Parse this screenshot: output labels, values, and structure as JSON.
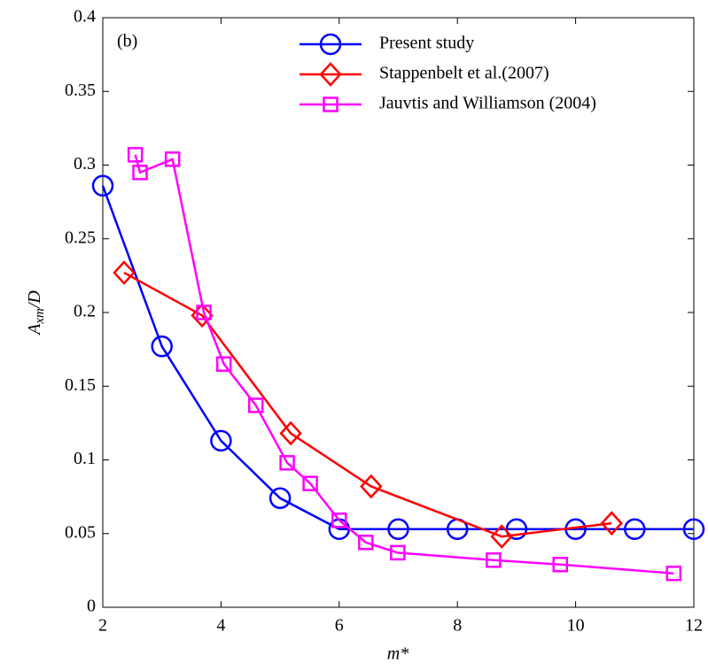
{
  "chart_data": {
    "type": "line",
    "annotation": "(b)",
    "xlabel": "m*",
    "ylabel": [
      "A",
      "xm",
      "/D"
    ],
    "xlim": [
      2,
      12
    ],
    "xticks": [
      2,
      4,
      6,
      8,
      10,
      12
    ],
    "ylim": [
      0,
      0.4
    ],
    "yticks": [
      0,
      0.05,
      0.1,
      0.15,
      0.2,
      0.25,
      0.3,
      0.35,
      0.4
    ],
    "grid": false,
    "legend": "top-right",
    "series": [
      {
        "name": "Present study",
        "color": "#0000ff",
        "marker": "circle",
        "x": [
          2,
          3,
          4,
          5,
          6,
          7,
          8,
          9,
          10,
          11,
          12
        ],
        "values": [
          0.286,
          0.177,
          0.113,
          0.074,
          0.053,
          0.053,
          0.053,
          0.053,
          0.053,
          0.053,
          0.053
        ]
      },
      {
        "name": "Stappenbelt et al.(2007)",
        "color": "#ff0000",
        "marker": "diamond",
        "x": [
          2.36,
          3.68,
          5.18,
          6.54,
          8.75,
          10.61
        ],
        "values": [
          0.227,
          0.198,
          0.118,
          0.082,
          0.048,
          0.057
        ]
      },
      {
        "name": "Jauvtis and Williamson (2004)",
        "color": "#ff00ff",
        "marker": "square",
        "x": [
          2.55,
          2.63,
          3.18,
          3.71,
          4.05,
          4.59,
          5.12,
          5.51,
          6.0,
          6.45,
          6.99,
          8.61,
          9.74,
          11.66
        ],
        "values": [
          0.307,
          0.295,
          0.304,
          0.2,
          0.165,
          0.137,
          0.098,
          0.084,
          0.059,
          0.044,
          0.037,
          0.032,
          0.029,
          0.023
        ]
      }
    ]
  }
}
